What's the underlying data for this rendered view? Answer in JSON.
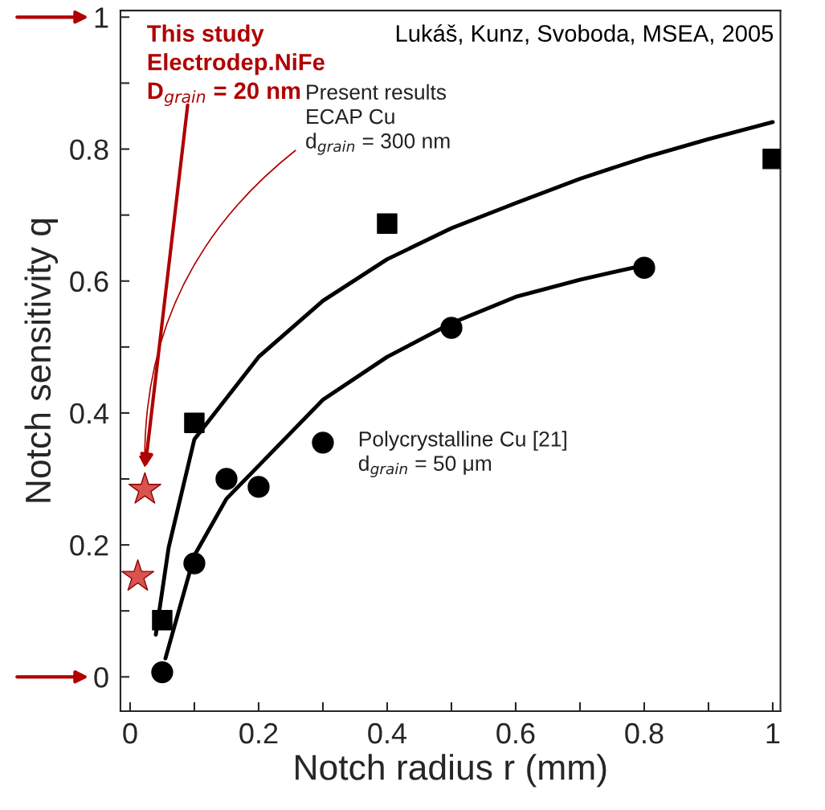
{
  "chart_data": {
    "type": "scatter",
    "xlabel": "Notch radius r (mm)",
    "ylabel": "Notch sensitivity q",
    "xlim": [
      -0.015,
      1.012
    ],
    "ylim": [
      -0.052,
      1.01
    ],
    "xticks": [
      0,
      {
        "value": 0.1,
        "label": null
      },
      0.2,
      {
        "value": 0.3,
        "label": null
      },
      0.4,
      {
        "value": 0.5,
        "label": null
      },
      0.6,
      {
        "value": 0.7,
        "label": null
      },
      0.8,
      {
        "value": 0.9,
        "label": null
      },
      1
    ],
    "yticks": [
      0,
      {
        "value": 0.1,
        "label": null
      },
      0.2,
      {
        "value": 0.3,
        "label": null
      },
      0.4,
      {
        "value": 0.5,
        "label": null
      },
      0.6,
      {
        "value": 0.7,
        "label": null
      },
      0.8,
      {
        "value": 0.9,
        "label": null
      },
      1
    ],
    "grid": false,
    "series": [
      {
        "type": "line",
        "color": "#000000",
        "line_style": "solid",
        "marker": "none",
        "x": [
          0.04,
          0.06,
          0.1,
          0.2,
          0.3,
          0.4,
          0.5,
          0.6,
          0.7,
          0.8,
          0.9,
          1.0
        ],
        "values": [
          0.064,
          0.196,
          0.36,
          0.485,
          0.57,
          0.633,
          0.68,
          0.718,
          0.755,
          0.787,
          0.815,
          0.841
        ]
      },
      {
        "type": "line",
        "color": "#000000",
        "line_style": "solid",
        "marker": "none",
        "x": [
          0.055,
          0.1,
          0.15,
          0.2,
          0.3,
          0.4,
          0.5,
          0.6,
          0.7,
          0.8
        ],
        "values": [
          0.028,
          0.184,
          0.27,
          0.32,
          0.42,
          0.485,
          0.536,
          0.576,
          0.602,
          0.624
        ]
      },
      {
        "color": "#000000",
        "marker": "square",
        "x": [
          0.05,
          0.1,
          0.4,
          1.0
        ],
        "values": [
          0.086,
          0.385,
          0.687,
          0.785
        ]
      },
      {
        "color": "#000000",
        "marker": "circle",
        "x": [
          0.05,
          0.1,
          0.15,
          0.2,
          0.3,
          0.5,
          0.8
        ],
        "values": [
          0.007,
          0.172,
          0.3,
          0.288,
          0.355,
          0.529,
          0.62
        ]
      },
      {
        "color": "#d9534f",
        "marker": "star",
        "x": [
          0.023,
          0.012
        ],
        "values": [
          0.284,
          0.152
        ]
      }
    ],
    "annotations": [
      "This study\nElectrodep.NiFe\nD$_{grain}$ = 20 nm",
      "Present results\nECAP Cu\nd$_{grain}$ = 300 nm",
      "Polycrystalline Cu [21]\nd$_{grain}$ = 50 μm",
      "Lukáš, Kunz, Svoboda, MSEA, 2005"
    ]
  }
}
